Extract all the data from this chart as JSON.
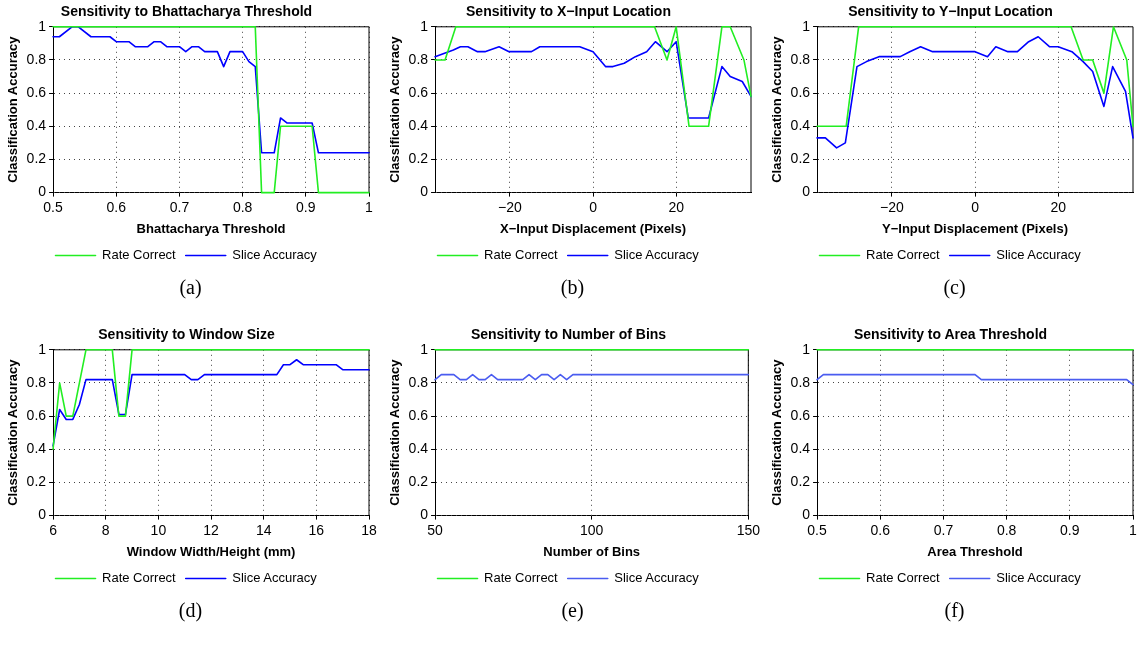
{
  "chart_data": [
    {
      "type": "line",
      "title": "Sensitivity to Bhattacharya Threshold",
      "xlabel": "Bhattacharya Threshold",
      "ylabel": "Classification Accuracy",
      "xlim": [
        0.5,
        1
      ],
      "xticks": [
        0.5,
        0.6,
        0.7,
        0.8,
        0.9,
        1
      ],
      "ylim": [
        0,
        1
      ],
      "yticks": [
        0,
        0.2,
        0.4,
        0.6,
        0.8,
        1
      ],
      "grid": true,
      "legend": "bottom",
      "annotations": [
        "(a)"
      ],
      "series": [
        {
          "name": "Rate Correct",
          "color": "#22ee22",
          "x": [
            0.5,
            0.82,
            0.83,
            0.85,
            0.86,
            0.91,
            0.92,
            1
          ],
          "values": [
            1,
            1,
            0,
            0,
            0.4,
            0.4,
            0,
            0
          ]
        },
        {
          "name": "Slice Accuracy",
          "color": "#0000ff",
          "x": [
            0.5,
            0.51,
            0.53,
            0.54,
            0.56,
            0.59,
            0.6,
            0.62,
            0.63,
            0.65,
            0.66,
            0.67,
            0.68,
            0.7,
            0.71,
            0.72,
            0.73,
            0.74,
            0.76,
            0.77,
            0.78,
            0.8,
            0.81,
            0.82,
            0.83,
            0.85,
            0.86,
            0.87,
            0.91,
            0.92,
            1
          ],
          "values": [
            0.94,
            0.94,
            1,
            1,
            0.94,
            0.94,
            0.91,
            0.91,
            0.88,
            0.88,
            0.91,
            0.91,
            0.88,
            0.88,
            0.85,
            0.88,
            0.88,
            0.85,
            0.85,
            0.76,
            0.85,
            0.85,
            0.79,
            0.76,
            0.24,
            0.24,
            0.45,
            0.42,
            0.42,
            0.24,
            0.24
          ]
        }
      ]
    },
    {
      "type": "line",
      "title": "Sensitivity to X−Input Location",
      "xlabel": "X−Input Displacement (Pixels)",
      "ylabel": "Classification Accuracy",
      "xlim": [
        -38,
        38
      ],
      "xticks": [
        {
          "value": -20,
          "label": "−20"
        },
        0,
        20
      ],
      "ylim": [
        0,
        1
      ],
      "yticks": [
        0,
        0.2,
        0.4,
        0.6,
        0.8,
        1
      ],
      "grid": true,
      "legend": "bottom",
      "annotations": [
        "(b)"
      ],
      "series": [
        {
          "name": "Rate Correct",
          "color": "#22ee22",
          "x": [
            -38,
            -35.6,
            -33,
            14.8,
            17.8,
            20,
            23.1,
            27.8,
            31,
            33,
            36.3,
            38
          ],
          "values": [
            0.8,
            0.8,
            1,
            1,
            0.8,
            1,
            0.4,
            0.4,
            1,
            1,
            0.8,
            0.58
          ]
        },
        {
          "name": "Slice Accuracy",
          "color": "#0000ff",
          "x": [
            -38,
            -33.6,
            -31.9,
            -30.1,
            -27.8,
            -26,
            -22.6,
            -20.2,
            -14.8,
            -12.8,
            -3.2,
            0,
            3,
            4.8,
            7.5,
            10.2,
            12.9,
            15,
            17.8,
            20,
            22.9,
            27.8,
            31,
            33,
            35.9,
            38
          ],
          "values": [
            0.82,
            0.86,
            0.88,
            0.88,
            0.85,
            0.85,
            0.88,
            0.85,
            0.85,
            0.88,
            0.88,
            0.85,
            0.76,
            0.76,
            0.78,
            0.82,
            0.85,
            0.91,
            0.85,
            0.91,
            0.45,
            0.45,
            0.76,
            0.7,
            0.67,
            0.58
          ]
        }
      ]
    },
    {
      "type": "line",
      "title": "Sensitivity to Y−Input Location",
      "xlabel": "Y−Input Displacement (Pixels)",
      "ylabel": "Classification Accuracy",
      "xlim": [
        -38,
        38
      ],
      "xticks": [
        {
          "value": -20,
          "label": "−20"
        },
        0,
        20
      ],
      "ylim": [
        0,
        1
      ],
      "yticks": [
        0,
        0.2,
        0.4,
        0.6,
        0.8,
        1
      ],
      "grid": true,
      "legend": "bottom",
      "annotations": [
        "(c)"
      ],
      "series": [
        {
          "name": "Rate Correct",
          "color": "#22ee22",
          "x": [
            -38,
            -31,
            -28,
            23.1,
            26,
            28.3,
            31,
            33.3,
            36.5,
            38
          ],
          "values": [
            0.4,
            0.4,
            1,
            1,
            0.8,
            0.8,
            0.6,
            1,
            0.8,
            0.4
          ]
        },
        {
          "name": "Slice Accuracy",
          "color": "#0000ff",
          "x": [
            -38,
            -36,
            -33.3,
            -31.2,
            -28.4,
            -26.1,
            -23.1,
            -18,
            -15.7,
            -13.1,
            -10.2,
            0,
            3,
            5,
            7.9,
            10.2,
            12.9,
            15.2,
            17.9,
            20,
            23.3,
            26,
            28.3,
            31,
            33.1,
            36.2,
            38
          ],
          "values": [
            0.33,
            0.33,
            0.27,
            0.3,
            0.76,
            0.79,
            0.82,
            0.82,
            0.85,
            0.88,
            0.85,
            0.85,
            0.82,
            0.88,
            0.85,
            0.85,
            0.91,
            0.94,
            0.88,
            0.88,
            0.85,
            0.79,
            0.73,
            0.52,
            0.76,
            0.61,
            0.33
          ]
        }
      ]
    },
    {
      "type": "line",
      "title": "Sensitivity to Window Size",
      "xlabel": "Window Width/Height (mm)",
      "ylabel": "Classification Accuracy",
      "xlim": [
        6,
        18
      ],
      "xticks": [
        6,
        8,
        10,
        12,
        14,
        16,
        18
      ],
      "ylim": [
        0,
        1
      ],
      "yticks": [
        0,
        0.2,
        0.4,
        0.6,
        0.8,
        1
      ],
      "grid": true,
      "legend": "bottom",
      "annotations": [
        "(d)"
      ],
      "series": [
        {
          "name": "Rate Correct",
          "color": "#22ee22",
          "x": [
            6,
            6.25,
            6.5,
            6.75,
            7.25,
            8.25,
            8.5,
            8.75,
            9,
            18
          ],
          "values": [
            0.4,
            0.8,
            0.6,
            0.6,
            1,
            1,
            0.6,
            0.6,
            1,
            1
          ]
        },
        {
          "name": "Slice Accuracy",
          "color": "#0000ff",
          "x": [
            6,
            6.25,
            6.5,
            6.75,
            7,
            7.25,
            8.25,
            8.5,
            8.75,
            9,
            11,
            11.25,
            11.5,
            11.75,
            14.5,
            14.75,
            15,
            15.25,
            15.5,
            16.75,
            17,
            18
          ],
          "values": [
            0.42,
            0.64,
            0.58,
            0.58,
            0.67,
            0.82,
            0.82,
            0.61,
            0.61,
            0.85,
            0.85,
            0.82,
            0.82,
            0.85,
            0.85,
            0.91,
            0.91,
            0.94,
            0.91,
            0.91,
            0.88,
            0.88
          ]
        }
      ]
    },
    {
      "type": "line",
      "title": "Sensitivity to Number of Bins",
      "xlabel": "Number of Bins",
      "ylabel": "Classification Accuracy",
      "xlim": [
        50,
        150
      ],
      "xticks": [
        50,
        100,
        150
      ],
      "ylim": [
        0,
        1
      ],
      "yticks": [
        0,
        0.2,
        0.4,
        0.6,
        0.8,
        1
      ],
      "grid": true,
      "legend": "bottom",
      "annotations": [
        "(e)"
      ],
      "series": [
        {
          "name": "Rate Correct",
          "color": "#22ee22",
          "x": [
            50,
            150
          ],
          "values": [
            1,
            1
          ]
        },
        {
          "name": "Slice Accuracy",
          "color": "#4a5cf0",
          "x": [
            50,
            52,
            56,
            58,
            60,
            62,
            64,
            66,
            68,
            70,
            78,
            80,
            82,
            84,
            86,
            88,
            90,
            92,
            94,
            150
          ],
          "values": [
            0.82,
            0.85,
            0.85,
            0.82,
            0.82,
            0.85,
            0.82,
            0.82,
            0.85,
            0.82,
            0.82,
            0.85,
            0.82,
            0.85,
            0.85,
            0.82,
            0.85,
            0.82,
            0.85,
            0.85
          ]
        }
      ]
    },
    {
      "type": "line",
      "title": "Sensitivity to Area Threshold",
      "xlabel": "Area Threshold",
      "ylabel": "Classification Accuracy",
      "xlim": [
        0.5,
        1
      ],
      "xticks": [
        0.5,
        0.6,
        0.7,
        0.8,
        0.9,
        1
      ],
      "ylim": [
        0,
        1
      ],
      "yticks": [
        0,
        0.2,
        0.4,
        0.6,
        0.8,
        1
      ],
      "grid": true,
      "legend": "bottom",
      "annotations": [
        "(f)"
      ],
      "series": [
        {
          "name": "Rate Correct",
          "color": "#22ee22",
          "x": [
            0.5,
            1
          ],
          "values": [
            1,
            1
          ]
        },
        {
          "name": "Slice Accuracy",
          "color": "#4a5cf0",
          "x": [
            0.5,
            0.51,
            0.75,
            0.76,
            0.99,
            1
          ],
          "values": [
            0.82,
            0.85,
            0.85,
            0.82,
            0.82,
            0.79
          ]
        }
      ]
    }
  ]
}
